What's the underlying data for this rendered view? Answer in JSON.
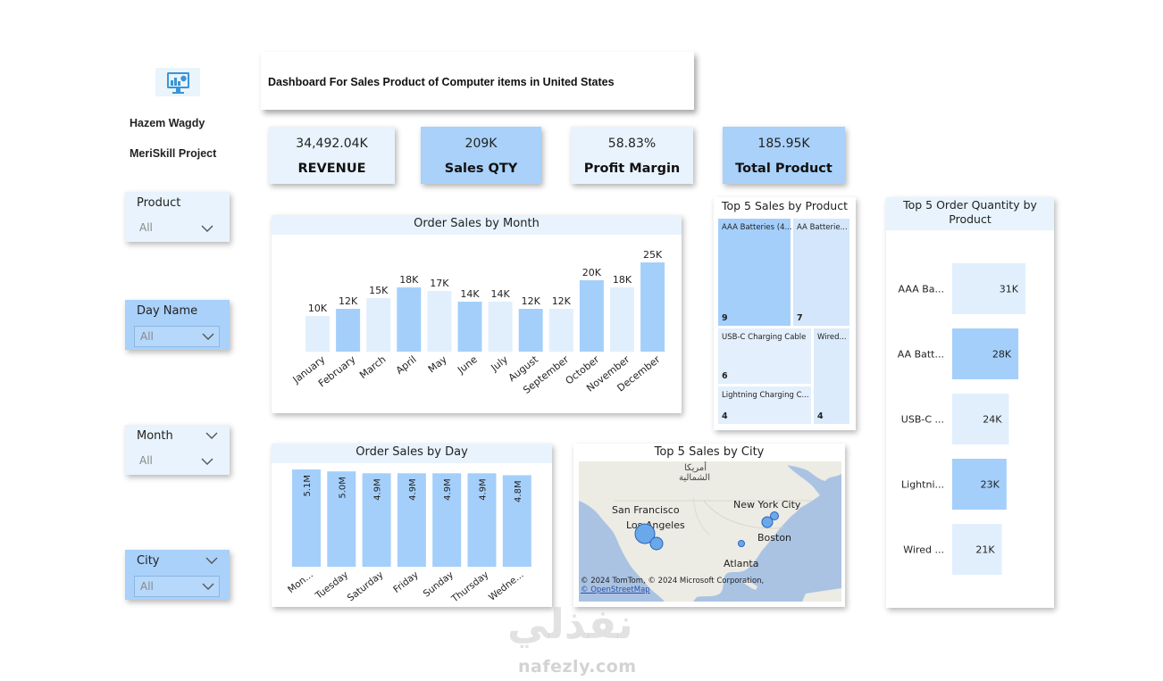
{
  "header": {
    "title": "Dashboard For Sales Product of Computer items in United States",
    "author": "Hazem Wagdy",
    "project": "MeriSkill Project",
    "logo_icon": "monitor-chart-icon"
  },
  "kpis": [
    {
      "value": "34,492.04K",
      "label": "REVENUE"
    },
    {
      "value": "209K",
      "label": "Sales QTY"
    },
    {
      "value": "58.83%",
      "label": "Profit Margin"
    },
    {
      "value": "185.95K",
      "label": "Total Product"
    }
  ],
  "slicers": [
    {
      "label": "Product",
      "value": "All"
    },
    {
      "label": "Day Name",
      "value": "All"
    },
    {
      "label": "Month",
      "value": "All"
    },
    {
      "label": "City",
      "value": "All"
    }
  ],
  "colors": {
    "bar_dark": "#a4cffb",
    "bar_light": "#e1effd",
    "panel_light": "#e8f3fd",
    "map_bubble": "#6aa8ea"
  },
  "chart_data": [
    {
      "type": "bar",
      "title": "Order Sales by Month",
      "categories": [
        "January",
        "February",
        "March",
        "April",
        "May",
        "June",
        "July",
        "August",
        "September",
        "October",
        "November",
        "December"
      ],
      "values": [
        10,
        12,
        15,
        18,
        17,
        14,
        14,
        12,
        12,
        20,
        18,
        25
      ],
      "labels": [
        "10K",
        "12K",
        "15K",
        "18K",
        "17K",
        "14K",
        "14K",
        "12K",
        "12K",
        "20K",
        "18K",
        "25K"
      ],
      "ylim": [
        0,
        25
      ]
    },
    {
      "type": "bar",
      "title": "Order Sales by Day",
      "categories": [
        "Mon...",
        "Tuesday",
        "Saturday",
        "Friday",
        "Sunday",
        "Thursday",
        "Wedne..."
      ],
      "values": [
        5.1,
        5.0,
        4.9,
        4.9,
        4.9,
        4.9,
        4.8
      ],
      "labels": [
        "5.1M",
        "5.0M",
        "4.9M",
        "4.9M",
        "4.9M",
        "4.9M",
        "4.8M"
      ]
    },
    {
      "type": "treemap",
      "title": "Top 5 Sales by Product",
      "items": [
        {
          "name": "AAA Batteries (4...",
          "value": 9
        },
        {
          "name": "AA Batterie...",
          "value": 7
        },
        {
          "name": "USB-C Charging Cable",
          "value": 6
        },
        {
          "name": "Lightning Charging C...",
          "value": 4
        },
        {
          "name": "Wired...",
          "value": 4
        }
      ]
    },
    {
      "type": "bar",
      "title": "Top 5 Order Quantity by Product",
      "categories": [
        "AAA Ba...",
        "AA Batt...",
        "USB-C ...",
        "Lightni...",
        "Wired ..."
      ],
      "values": [
        31,
        28,
        24,
        23,
        21
      ],
      "labels": [
        "31K",
        "28K",
        "24K",
        "23K",
        "21K"
      ]
    }
  ],
  "map": {
    "title": "Top 5 Sales by City",
    "region_label_line1": "أمريكا",
    "region_label_line2": "الشمالية",
    "cities": [
      "San Francisco",
      "Los Angeles",
      "New York City",
      "Boston",
      "Atlanta"
    ],
    "attribution_1": "© 2024 TomTom, © 2024 Microsoft Corporation,",
    "attribution_2": "© OpenStreetMap"
  },
  "watermark": {
    "arabic": "نفذلي",
    "latin": "nafezly.com"
  }
}
